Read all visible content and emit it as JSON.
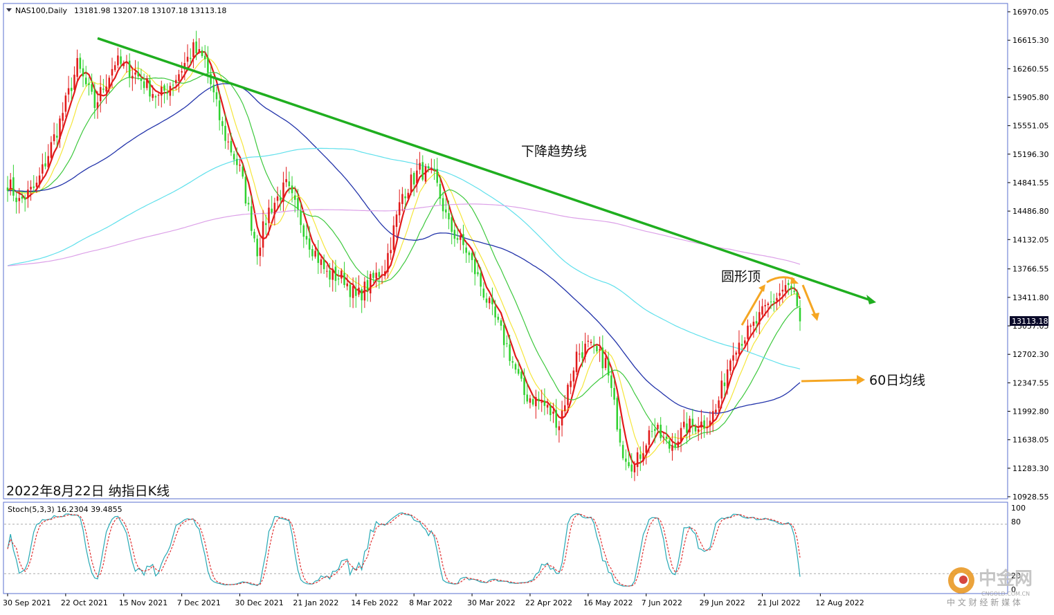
{
  "chart_data": {
    "type": "candlestick",
    "header": {
      "symbol": "NAS100,Daily",
      "ohlc": "13181.98 13207.18 13107.18 13113.18"
    },
    "price_axis": {
      "min": 10928.55,
      "max": 16970.05,
      "ticks": [
        "16970.05",
        "16615.30",
        "16260.55",
        "15905.80",
        "15551.05",
        "15196.30",
        "14841.55",
        "14486.80",
        "14132.05",
        "13766.55",
        "13411.80",
        "13057.05",
        "12702.30",
        "12347.55",
        "11992.80",
        "11638.05",
        "11283.30",
        "10928.55"
      ],
      "current": 13113.18,
      "current_label": "13113.18"
    },
    "date_axis": {
      "labels": [
        "30 Sep 2021",
        "22 Oct 2021",
        "15 Nov 2021",
        "7 Dec 2021",
        "30 Dec 2021",
        "21 Jan 2022",
        "14 Feb 2022",
        "8 Mar 2022",
        "30 Mar 2022",
        "22 Apr 2022",
        "16 May 2022",
        "7 Jun 2022",
        "29 Jun 2022",
        "21 Jul 2022",
        "12 Aug 2022"
      ]
    },
    "anchors": [
      {
        "i": 0,
        "p": 14850
      },
      {
        "i": 4,
        "p": 14600
      },
      {
        "i": 10,
        "p": 14800
      },
      {
        "i": 18,
        "p": 15600
      },
      {
        "i": 24,
        "p": 16300
      },
      {
        "i": 30,
        "p": 15800
      },
      {
        "i": 37,
        "p": 16350
      },
      {
        "i": 44,
        "p": 16200
      },
      {
        "i": 52,
        "p": 15900
      },
      {
        "i": 58,
        "p": 16150
      },
      {
        "i": 64,
        "p": 16500
      },
      {
        "i": 68,
        "p": 16350
      },
      {
        "i": 74,
        "p": 15500
      },
      {
        "i": 80,
        "p": 15000
      },
      {
        "i": 86,
        "p": 14000
      },
      {
        "i": 90,
        "p": 14500
      },
      {
        "i": 96,
        "p": 14800
      },
      {
        "i": 104,
        "p": 14100
      },
      {
        "i": 110,
        "p": 13700
      },
      {
        "i": 116,
        "p": 13650
      },
      {
        "i": 120,
        "p": 13400
      },
      {
        "i": 130,
        "p": 13800
      },
      {
        "i": 136,
        "p": 14700
      },
      {
        "i": 142,
        "p": 15000
      },
      {
        "i": 147,
        "p": 14900
      },
      {
        "i": 152,
        "p": 14300
      },
      {
        "i": 158,
        "p": 14000
      },
      {
        "i": 166,
        "p": 13300
      },
      {
        "i": 172,
        "p": 12800
      },
      {
        "i": 178,
        "p": 12200
      },
      {
        "i": 184,
        "p": 12100
      },
      {
        "i": 190,
        "p": 11850
      },
      {
        "i": 196,
        "p": 12700
      },
      {
        "i": 200,
        "p": 12800
      },
      {
        "i": 206,
        "p": 12600
      },
      {
        "i": 212,
        "p": 11500
      },
      {
        "i": 216,
        "p": 11300
      },
      {
        "i": 222,
        "p": 11800
      },
      {
        "i": 228,
        "p": 11550
      },
      {
        "i": 234,
        "p": 11800
      },
      {
        "i": 240,
        "p": 11850
      },
      {
        "i": 244,
        "p": 12000
      },
      {
        "i": 250,
        "p": 12800
      },
      {
        "i": 256,
        "p": 13000
      },
      {
        "i": 262,
        "p": 13300
      },
      {
        "i": 268,
        "p": 13550
      },
      {
        "i": 271,
        "p": 13450
      },
      {
        "i": 272,
        "p": 13250
      },
      {
        "i": 273,
        "p": 13113
      }
    ],
    "moving_averages": [
      {
        "period": 5,
        "color": "#e11a1a",
        "width": 2.2
      },
      {
        "period": 10,
        "color": "#f5e63a",
        "width": 1.2
      },
      {
        "period": 20,
        "color": "#3cc83c",
        "width": 1.2
      },
      {
        "period": 60,
        "color": "#2233aa",
        "width": 1.3,
        "label": "60日均线"
      },
      {
        "period": 120,
        "color": "#5fe0ec",
        "width": 1.2
      },
      {
        "period": 250,
        "color": "#dca0e8",
        "width": 1.2
      }
    ],
    "trendline": {
      "from": {
        "i": 31,
        "p": 16640
      },
      "to": {
        "i": 272,
        "p": 13710
      },
      "label": "下降趋势线",
      "color": "#1fae1f"
    },
    "pattern_label": "圆形顶",
    "ma60_label": "60日均线",
    "chart_caption": "2022年8月22日 纳指日K线",
    "stochastic": {
      "label": "Stoch(5,3,3) 16.2304 39.4855",
      "levels": [
        "100",
        "80",
        "20",
        "0"
      ],
      "k_color": "#25a8b4",
      "d_color": "#e03030"
    },
    "colors": {
      "up": "#e11a1a",
      "down": "#2fd12f"
    }
  },
  "watermark": {
    "name": "中金网",
    "domain": "CNGOLD.COM.CN",
    "tagline": "中 文 财 经 新 媒 体"
  }
}
